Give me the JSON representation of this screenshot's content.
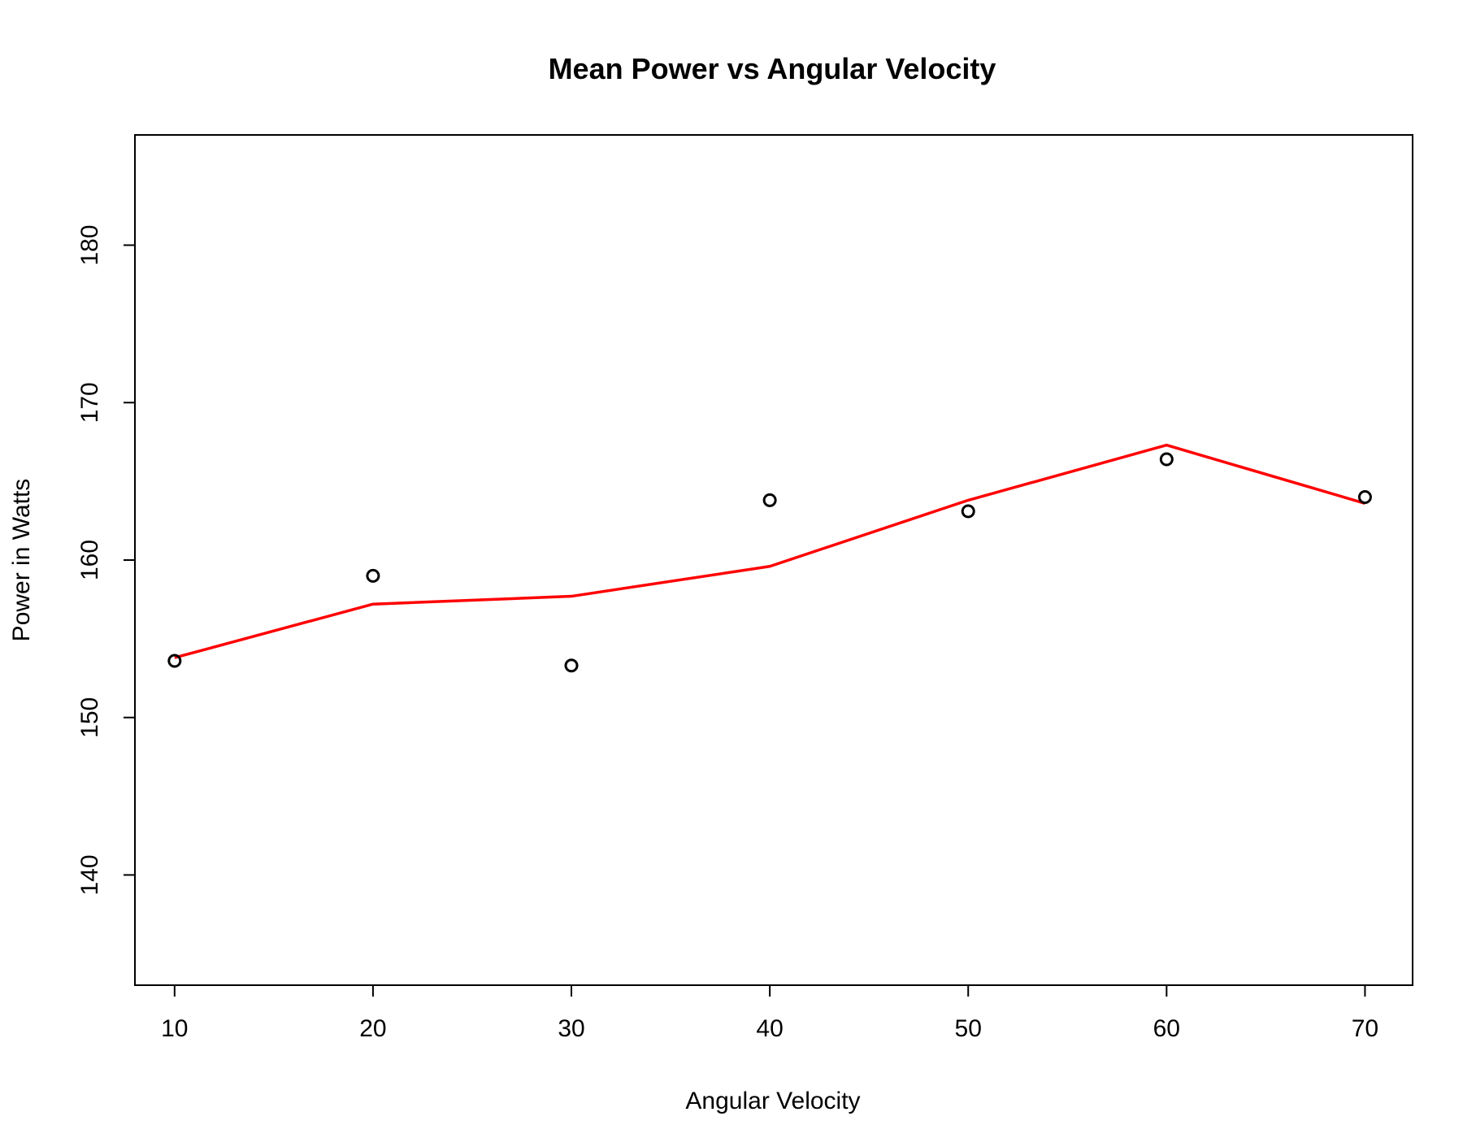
{
  "chart_data": {
    "type": "scatter",
    "title": "Mean Power vs Angular Velocity",
    "xlabel": "Angular Velocity",
    "ylabel": "Power in Watts",
    "xlim": [
      8,
      72.4
    ],
    "ylim": [
      133,
      187
    ],
    "xticks": [
      10,
      20,
      30,
      40,
      50,
      60,
      70
    ],
    "yticks": [
      140,
      150,
      160,
      170,
      180
    ],
    "grid": false,
    "points": {
      "x": [
        10,
        20,
        30,
        40,
        50,
        60,
        70
      ],
      "y": [
        153.6,
        159.0,
        153.3,
        163.8,
        163.1,
        166.4,
        164.0
      ],
      "marker": "open-circle",
      "color": "#000000"
    },
    "line": {
      "x": [
        10,
        20,
        30,
        40,
        50,
        60,
        70
      ],
      "y": [
        153.8,
        157.2,
        157.7,
        159.6,
        163.8,
        167.3,
        163.6
      ],
      "color": "#ff0000"
    }
  }
}
